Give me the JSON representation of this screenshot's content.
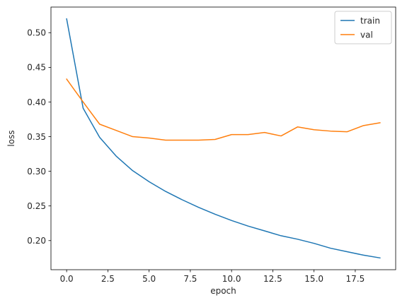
{
  "chart_data": {
    "type": "line",
    "title": "",
    "xlabel": "epoch",
    "ylabel": "loss",
    "xlim": [
      -0.95,
      19.95
    ],
    "ylim": [
      0.158,
      0.537
    ],
    "xticks": [
      0.0,
      2.5,
      5.0,
      7.5,
      10.0,
      12.5,
      15.0,
      17.5
    ],
    "xtick_labels": [
      "0.0",
      "2.5",
      "5.0",
      "7.5",
      "10.0",
      "12.5",
      "15.0",
      "17.5"
    ],
    "yticks": [
      0.2,
      0.25,
      0.3,
      0.35,
      0.4,
      0.45,
      0.5
    ],
    "ytick_labels": [
      "0.20",
      "0.25",
      "0.30",
      "0.35",
      "0.40",
      "0.45",
      "0.50"
    ],
    "grid": false,
    "legend_position": "top-right",
    "x": [
      0,
      1,
      2,
      3,
      4,
      5,
      6,
      7,
      8,
      9,
      10,
      11,
      12,
      13,
      14,
      15,
      16,
      17,
      18,
      19
    ],
    "series": [
      {
        "name": "train",
        "color": "#1f77b4",
        "values": [
          0.52,
          0.391,
          0.349,
          0.322,
          0.301,
          0.285,
          0.271,
          0.259,
          0.248,
          0.238,
          0.229,
          0.221,
          0.214,
          0.207,
          0.202,
          0.196,
          0.189,
          0.184,
          0.179,
          0.175
        ]
      },
      {
        "name": "val",
        "color": "#ff7f0e",
        "values": [
          0.433,
          0.4,
          0.368,
          0.359,
          0.35,
          0.348,
          0.345,
          0.345,
          0.345,
          0.346,
          0.353,
          0.353,
          0.356,
          0.351,
          0.364,
          0.36,
          0.358,
          0.357,
          0.366,
          0.37
        ]
      }
    ]
  }
}
